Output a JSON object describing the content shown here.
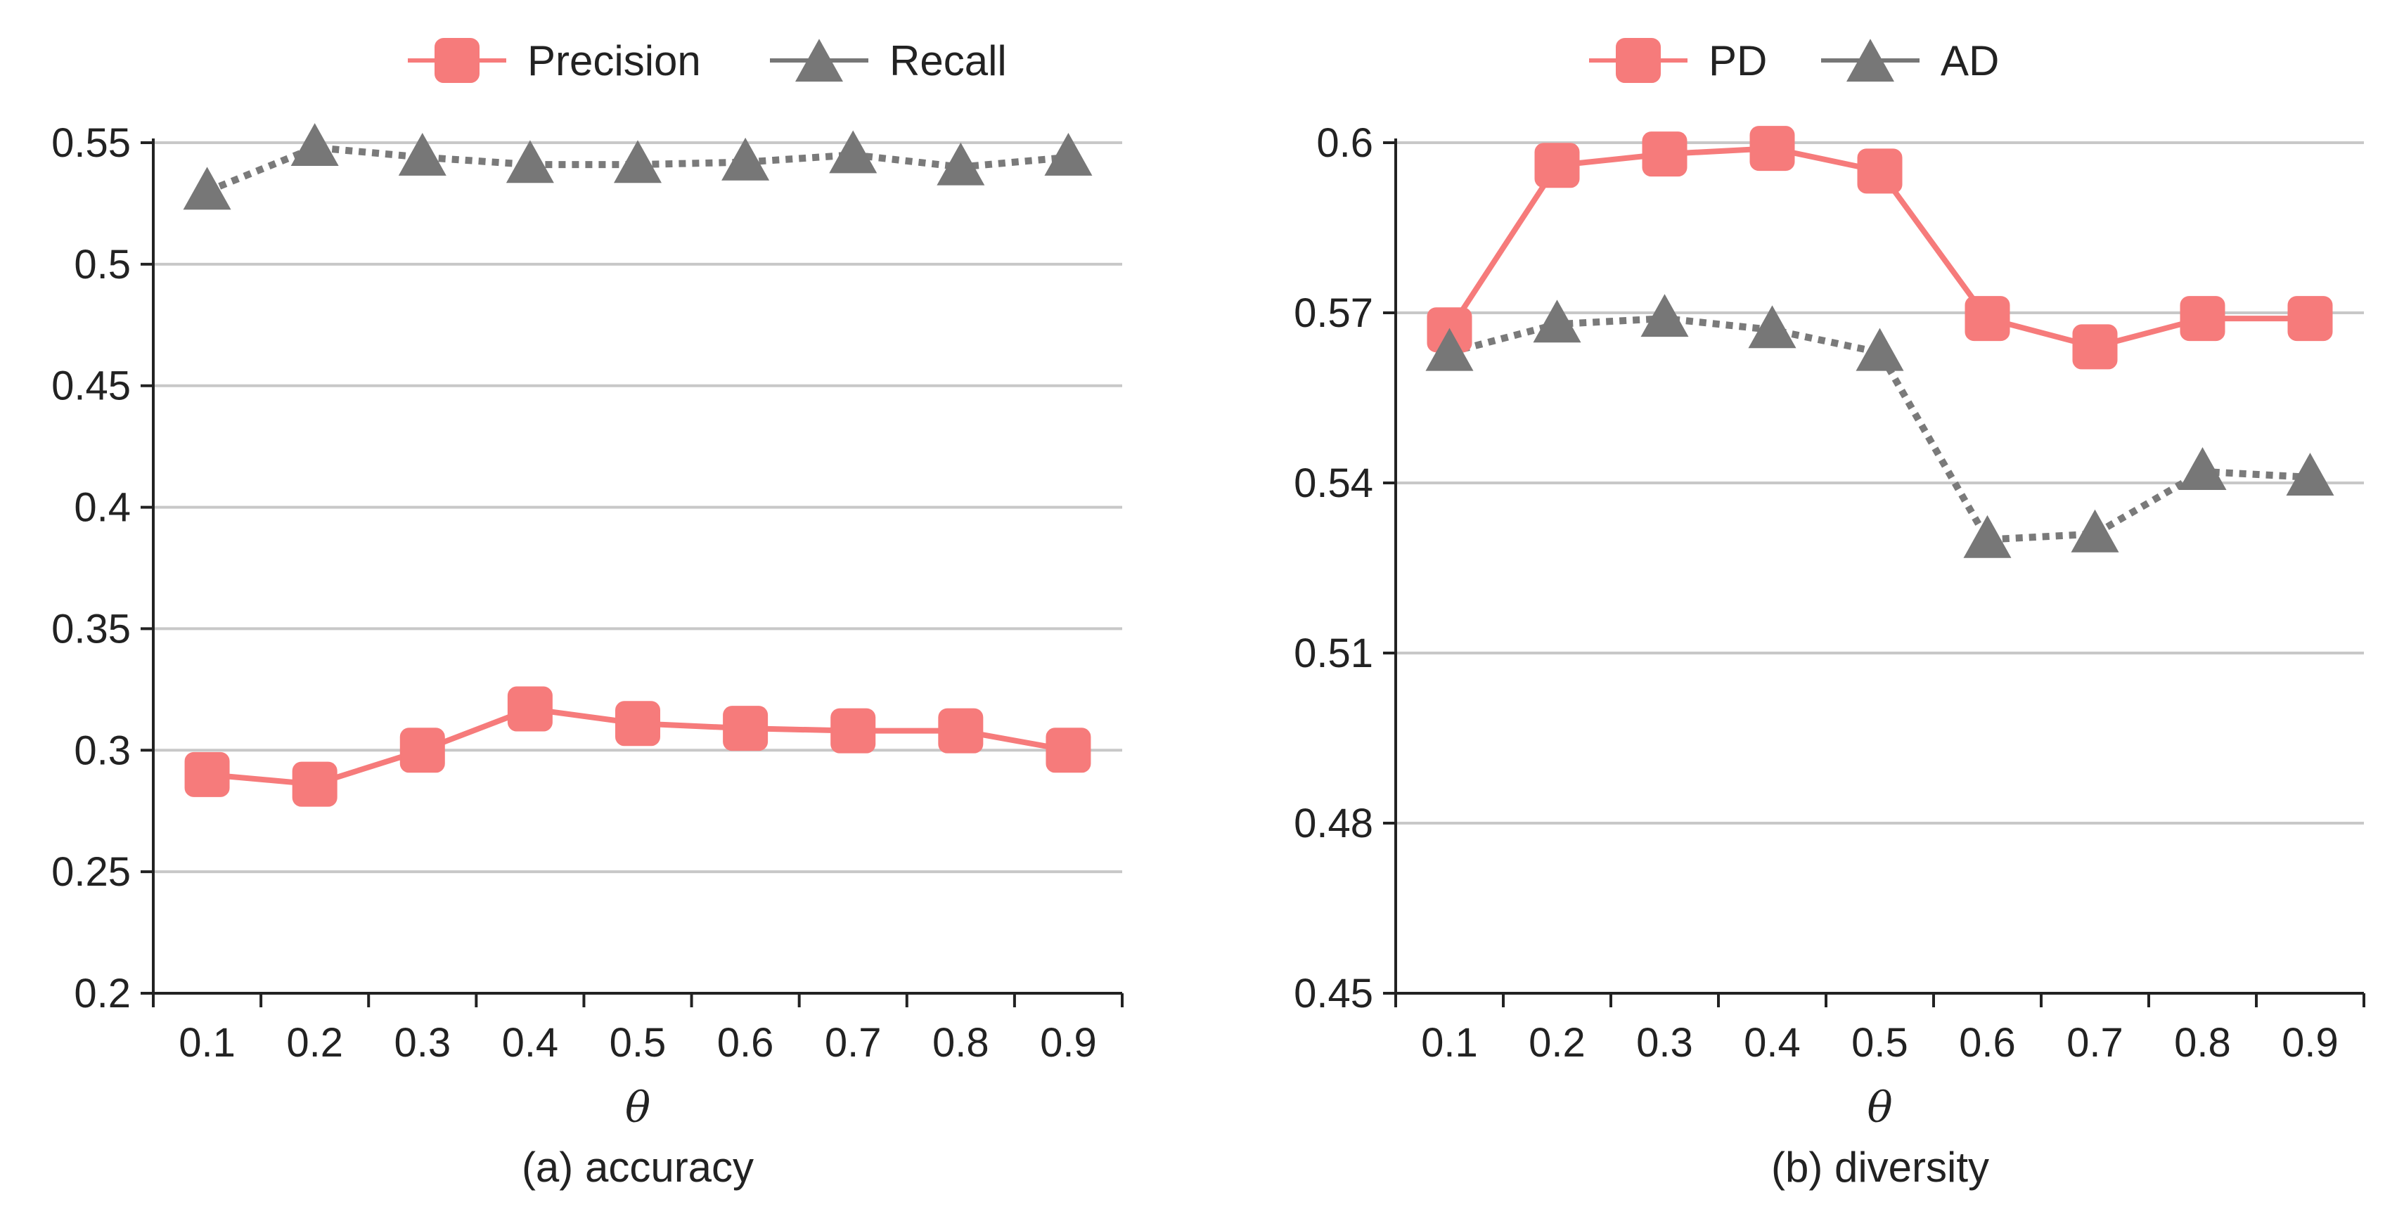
{
  "chart_data": [
    {
      "type": "line",
      "panel": "left",
      "caption": "(a) accuracy",
      "xlabel": "θ",
      "ylabel": "",
      "categories": [
        "0.1",
        "0.2",
        "0.3",
        "0.4",
        "0.5",
        "0.6",
        "0.7",
        "0.8",
        "0.9"
      ],
      "ylim": [
        0.2,
        0.55
      ],
      "yticks": [
        0.2,
        0.25,
        0.3,
        0.35,
        0.4,
        0.45,
        0.5,
        0.55
      ],
      "ytick_labels": [
        "0.2",
        "0.25",
        "0.3",
        "0.35",
        "0.4",
        "0.45",
        "0.5",
        "0.55"
      ],
      "grid": "horizontal",
      "legend": "top",
      "series": [
        {
          "name": "Precision",
          "marker": "square",
          "line": "solid",
          "color": "#f67b7b",
          "values": [
            0.29,
            0.286,
            0.3,
            0.317,
            0.311,
            0.309,
            0.308,
            0.308,
            0.3
          ]
        },
        {
          "name": "Recall",
          "marker": "triangle",
          "line": "dotted",
          "color": "#777777",
          "values": [
            0.53,
            0.548,
            0.544,
            0.541,
            0.541,
            0.542,
            0.545,
            0.54,
            0.544
          ]
        }
      ]
    },
    {
      "type": "line",
      "panel": "right",
      "caption": "(b) diversity",
      "xlabel": "θ",
      "ylabel": "",
      "categories": [
        "0.1",
        "0.2",
        "0.3",
        "0.4",
        "0.5",
        "0.6",
        "0.7",
        "0.8",
        "0.9"
      ],
      "ylim": [
        0.45,
        0.6
      ],
      "yticks": [
        0.45,
        0.48,
        0.51,
        0.54,
        0.57,
        0.6
      ],
      "ytick_labels": [
        "0.45",
        "0.48",
        "0.51",
        "0.54",
        "0.57",
        "0.6"
      ],
      "grid": "horizontal",
      "legend": "top",
      "series": [
        {
          "name": "PD",
          "marker": "square",
          "line": "solid",
          "color": "#f67b7b",
          "values": [
            0.567,
            0.596,
            0.598,
            0.599,
            0.595,
            0.569,
            0.564,
            0.569,
            0.569
          ]
        },
        {
          "name": "AD",
          "marker": "triangle",
          "line": "dotted",
          "color": "#777777",
          "values": [
            0.563,
            0.568,
            0.569,
            0.567,
            0.563,
            0.53,
            0.531,
            0.542,
            0.541
          ]
        }
      ]
    }
  ]
}
